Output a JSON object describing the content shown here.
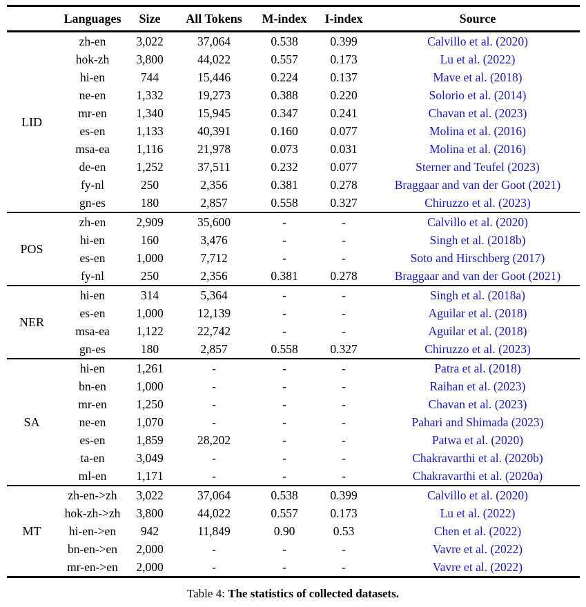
{
  "table": {
    "headers": [
      "Languages",
      "Size",
      "All Tokens",
      "M-index",
      "I-index",
      "Source"
    ],
    "sections": [
      {
        "label": "LID",
        "rows": [
          {
            "lang": "zh-en",
            "size": "3,022",
            "tokens": "37,064",
            "m": "0.538",
            "i": "0.399",
            "source": "Calvillo et al. (2020)"
          },
          {
            "lang": "hok-zh",
            "size": "3,800",
            "tokens": "44,022",
            "m": "0.557",
            "i": "0.173",
            "source": "Lu et al. (2022)"
          },
          {
            "lang": "hi-en",
            "size": "744",
            "tokens": "15,446",
            "m": "0.224",
            "i": "0.137",
            "source": "Mave et al. (2018)"
          },
          {
            "lang": "ne-en",
            "size": "1,332",
            "tokens": "19,273",
            "m": "0.388",
            "i": "0.220",
            "source": "Solorio et al. (2014)"
          },
          {
            "lang": "mr-en",
            "size": "1,340",
            "tokens": "15,945",
            "m": "0.347",
            "i": "0.241",
            "source": "Chavan et al. (2023)"
          },
          {
            "lang": "es-en",
            "size": "1,133",
            "tokens": "40,391",
            "m": "0.160",
            "i": "0.077",
            "source": "Molina et al. (2016)"
          },
          {
            "lang": "msa-ea",
            "size": "1,116",
            "tokens": "21,978",
            "m": "0.073",
            "i": "0.031",
            "source": "Molina et al. (2016)"
          },
          {
            "lang": "de-en",
            "size": "1,252",
            "tokens": "37,511",
            "m": "0.232",
            "i": "0.077",
            "source": "Sterner and Teufel (2023)"
          },
          {
            "lang": "fy-nl",
            "size": "250",
            "tokens": "2,356",
            "m": "0.381",
            "i": "0.278",
            "source": "Braggaar and van der Goot (2021)"
          },
          {
            "lang": "gn-es",
            "size": "180",
            "tokens": "2,857",
            "m": "0.558",
            "i": "0.327",
            "source": "Chiruzzo et al. (2023)"
          }
        ]
      },
      {
        "label": "POS",
        "rows": [
          {
            "lang": "zh-en",
            "size": "2,909",
            "tokens": "35,600",
            "m": "-",
            "i": "-",
            "source": "Calvillo et al. (2020)"
          },
          {
            "lang": "hi-en",
            "size": "160",
            "tokens": "3,476",
            "m": "-",
            "i": "-",
            "source": "Singh et al. (2018b)"
          },
          {
            "lang": "es-en",
            "size": "1,000",
            "tokens": "7,712",
            "m": "-",
            "i": "-",
            "source": "Soto and Hirschberg (2017)"
          },
          {
            "lang": "fy-nl",
            "size": "250",
            "tokens": "2,356",
            "m": "0.381",
            "i": "0.278",
            "source": "Braggaar and van der Goot (2021)"
          }
        ]
      },
      {
        "label": "NER",
        "rows": [
          {
            "lang": "hi-en",
            "size": "314",
            "tokens": "5,364",
            "m": "-",
            "i": "-",
            "source": "Singh et al. (2018a)"
          },
          {
            "lang": "es-en",
            "size": "1,000",
            "tokens": "12,139",
            "m": "-",
            "i": "-",
            "source": "Aguilar et al. (2018)"
          },
          {
            "lang": "msa-ea",
            "size": "1,122",
            "tokens": "22,742",
            "m": "-",
            "i": "-",
            "source": "Aguilar et al. (2018)"
          },
          {
            "lang": "gn-es",
            "size": "180",
            "tokens": "2,857",
            "m": "0.558",
            "i": "0.327",
            "source": "Chiruzzo et al. (2023)"
          }
        ]
      },
      {
        "label": "SA",
        "rows": [
          {
            "lang": "hi-en",
            "size": "1,261",
            "tokens": "-",
            "m": "-",
            "i": "-",
            "source": "Patra et al. (2018)"
          },
          {
            "lang": "bn-en",
            "size": "1,000",
            "tokens": "-",
            "m": "-",
            "i": "-",
            "source": "Raihan et al. (2023)"
          },
          {
            "lang": "mr-en",
            "size": "1,250",
            "tokens": "-",
            "m": "-",
            "i": "-",
            "source": "Chavan et al. (2023)"
          },
          {
            "lang": "ne-en",
            "size": "1,070",
            "tokens": "-",
            "m": "-",
            "i": "-",
            "source": "Pahari and Shimada (2023)"
          },
          {
            "lang": "es-en",
            "size": "1,859",
            "tokens": "28,202",
            "m": "-",
            "i": "-",
            "source": "Patwa et al. (2020)"
          },
          {
            "lang": "ta-en",
            "size": "3,049",
            "tokens": "-",
            "m": "-",
            "i": "-",
            "source": "Chakravarthi et al. (2020b)"
          },
          {
            "lang": "ml-en",
            "size": "1,171",
            "tokens": "-",
            "m": "-",
            "i": "-",
            "source": "Chakravarthi et al. (2020a)"
          }
        ]
      },
      {
        "label": "MT",
        "rows": [
          {
            "lang": "zh-en->zh",
            "size": "3,022",
            "tokens": "37,064",
            "m": "0.538",
            "i": "0.399",
            "source": "Calvillo et al. (2020)"
          },
          {
            "lang": "hok-zh->zh",
            "size": "3,800",
            "tokens": "44,022",
            "m": "0.557",
            "i": "0.173",
            "source": "Lu et al. (2022)"
          },
          {
            "lang": "hi-en->en",
            "size": "942",
            "tokens": "11,849",
            "m": "0.90",
            "i": "0.53",
            "source": "Chen et al. (2022)"
          },
          {
            "lang": "bn-en->en",
            "size": "2,000",
            "tokens": "-",
            "m": "-",
            "i": "-",
            "source": "Vavre et al. (2022)"
          },
          {
            "lang": "mr-en->en",
            "size": "2,000",
            "tokens": "-",
            "m": "-",
            "i": "-",
            "source": "Vavre et al. (2022)"
          }
        ]
      }
    ]
  },
  "caption": {
    "prefix": "Table 4: ",
    "text": "The statistics of collected datasets."
  },
  "colors": {
    "citation_blue": "#1b1bb3",
    "rule_black": "#000000",
    "background": "#ffffff"
  }
}
